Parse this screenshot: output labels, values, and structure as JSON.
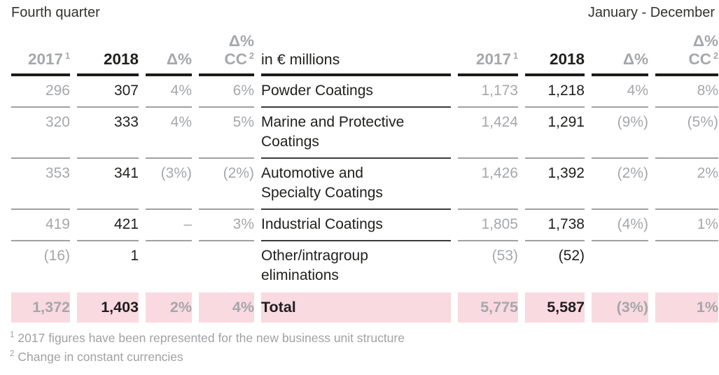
{
  "period": {
    "left": "Fourth quarter",
    "right": "January - December"
  },
  "table": {
    "unit_label": "in € millions",
    "columns": {
      "year_prev": "2017",
      "year_prev_sup": "1",
      "year_cur": "2018",
      "delta": "Δ%",
      "cc_line1": "Δ%",
      "cc_label": "CC",
      "cc_sup": "2"
    },
    "rows": [
      {
        "name": "Powder Coatings",
        "q4": [
          "296",
          "307",
          "4%",
          "6%"
        ],
        "fy": [
          "1,173",
          "1,218",
          "4%",
          "8%"
        ]
      },
      {
        "name": "Marine and Protective\nCoatings",
        "q4": [
          "320",
          "333",
          "4%",
          "5%"
        ],
        "fy": [
          "1,424",
          "1,291",
          "(9%)",
          "(5%)"
        ]
      },
      {
        "name": "Automotive and\nSpecialty Coatings",
        "q4": [
          "353",
          "341",
          "(3%)",
          "(2%)"
        ],
        "fy": [
          "1,426",
          "1,392",
          "(2%)",
          "2%"
        ]
      },
      {
        "name": "Industrial Coatings",
        "q4": [
          "419",
          "421",
          "–",
          "3%"
        ],
        "fy": [
          "1,805",
          "1,738",
          "(4%)",
          "1%"
        ]
      },
      {
        "name": "Other/intragroup\neliminations",
        "q4": [
          "(16)",
          "1",
          "",
          ""
        ],
        "fy": [
          "(53)",
          "(52)",
          "",
          ""
        ]
      }
    ],
    "total": {
      "name": "Total",
      "q4": [
        "1,372",
        "1,403",
        "2%",
        "4%"
      ],
      "fy": [
        "5,775",
        "5,587",
        "(3%)",
        "1%"
      ]
    }
  },
  "footnotes": [
    {
      "sup": "1",
      "text": "2017 figures have been represented for the new business unit structure"
    },
    {
      "sup": "2",
      "text": "Change in constant currencies"
    }
  ],
  "colors": {
    "total_highlight_pink": "#f9dae1",
    "gray_text": "#a5a7aa",
    "dark_text": "#1f1f1d",
    "header_rule": "#1c1c1a",
    "row_rule_light": "#9ea0a2",
    "row_rule_dark": "#3c3c3a"
  }
}
